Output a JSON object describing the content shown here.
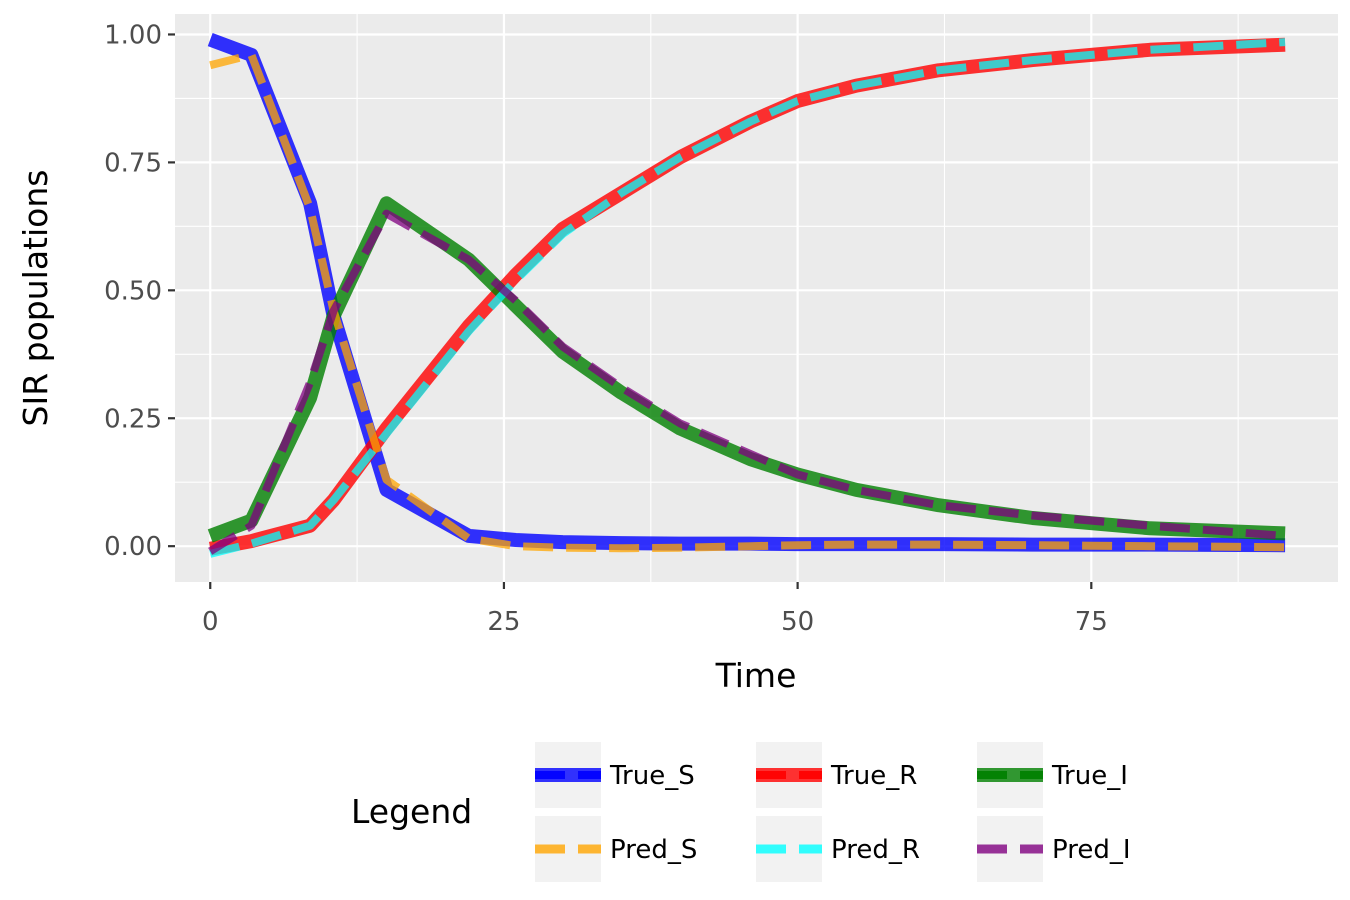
{
  "chart_data": {
    "type": "line",
    "title": "",
    "xlabel": "Time",
    "ylabel": "SIR populations",
    "xlim": [
      -3,
      96
    ],
    "ylim": [
      -0.07,
      1.04
    ],
    "x_ticks": [
      0,
      25,
      50,
      75
    ],
    "y_ticks": [
      0.0,
      0.25,
      0.5,
      0.75,
      1.0
    ],
    "x_tick_labels": [
      "0",
      "25",
      "50",
      "75"
    ],
    "y_tick_labels": [
      "0.00",
      "0.25",
      "0.50",
      "0.75",
      "1.00"
    ],
    "grid": true,
    "legend": {
      "title": "Legend",
      "position": "bottom",
      "entries": [
        "True_S",
        "True_R",
        "True_I",
        "Pred_S",
        "Pred_R",
        "Pred_I"
      ]
    },
    "x": [
      0,
      3.5,
      8.5,
      10.5,
      15,
      22,
      26,
      30,
      35,
      40,
      46,
      50,
      55,
      62,
      70,
      75,
      80,
      91.5
    ],
    "series": [
      {
        "name": "True_S",
        "color": "#0000ff",
        "style": "solid",
        "values": [
          0.99,
          0.96,
          0.67,
          0.45,
          0.11,
          0.02,
          0.012,
          0.008,
          0.006,
          0.005,
          0.005,
          0.004,
          0.004,
          0.004,
          0.003,
          0.003,
          0.003,
          0.002
        ]
      },
      {
        "name": "True_R",
        "color": "#ff0000",
        "style": "solid",
        "values": [
          -0.005,
          0.01,
          0.04,
          0.09,
          0.23,
          0.43,
          0.53,
          0.62,
          0.69,
          0.76,
          0.83,
          0.87,
          0.9,
          0.93,
          0.95,
          0.96,
          0.97,
          0.98
        ]
      },
      {
        "name": "True_I",
        "color": "#008000",
        "style": "solid",
        "values": [
          0.02,
          0.05,
          0.29,
          0.45,
          0.67,
          0.56,
          0.47,
          0.38,
          0.3,
          0.23,
          0.17,
          0.14,
          0.11,
          0.08,
          0.055,
          0.045,
          0.035,
          0.025
        ]
      },
      {
        "name": "Pred_S",
        "color": "#ffa500",
        "style": "dashed",
        "values": [
          0.94,
          0.96,
          0.66,
          0.46,
          0.13,
          0.015,
          0.0,
          -0.003,
          -0.004,
          -0.003,
          0.0,
          0.002,
          0.003,
          0.003,
          0.002,
          0.001,
          0.0,
          -0.002
        ]
      },
      {
        "name": "Pred_R",
        "color": "#00ffff",
        "style": "dashed",
        "values": [
          -0.015,
          0.005,
          0.04,
          0.09,
          0.22,
          0.42,
          0.52,
          0.61,
          0.69,
          0.76,
          0.83,
          0.87,
          0.9,
          0.93,
          0.95,
          0.96,
          0.97,
          0.985
        ]
      },
      {
        "name": "Pred_I",
        "color": "#800080",
        "style": "dashed",
        "values": [
          -0.01,
          0.04,
          0.32,
          0.46,
          0.65,
          0.56,
          0.48,
          0.39,
          0.31,
          0.24,
          0.18,
          0.14,
          0.11,
          0.08,
          0.06,
          0.05,
          0.04,
          0.02
        ]
      }
    ]
  }
}
